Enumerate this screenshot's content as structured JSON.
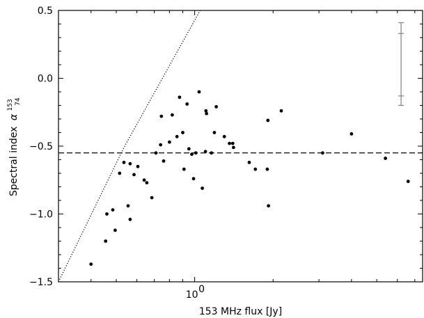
{
  "chart_data": {
    "type": "scatter",
    "xlabel": "153 MHz flux [Jy]",
    "ylabel": "Spectral index",
    "ylabel_symbol": "α",
    "ylabel_sup": "153",
    "ylabel_sub": "74",
    "xscale": "log",
    "xlim": [
      0.3,
      7.5
    ],
    "ylim": [
      -1.5,
      0.5
    ],
    "yticks": [
      {
        "value": 0.5,
        "label": "0.5"
      },
      {
        "value": 0.0,
        "label": "0.0"
      },
      {
        "value": -0.5,
        "label": "−0.5"
      },
      {
        "value": -1.0,
        "label": "−1.0"
      },
      {
        "value": -1.5,
        "label": "−1.5"
      }
    ],
    "xticks": [
      {
        "value": 1,
        "base": "10",
        "exponent": "0"
      }
    ],
    "horizontal_line": {
      "y": -0.55,
      "style": "dashed"
    },
    "dotted_line": {
      "points": [
        [
          0.3,
          -1.5
        ],
        [
          0.535,
          -0.51
        ],
        [
          1.05,
          0.5
        ]
      ],
      "style": "dotted"
    },
    "error_bar": {
      "x": 6.2,
      "center": 0.33,
      "outer": [
        -0.2,
        0.41
      ],
      "inner": [
        -0.13,
        0.33
      ],
      "color": "#808080"
    },
    "grid": false,
    "points": [
      [
        0.4,
        -1.37
      ],
      [
        0.455,
        -1.2
      ],
      [
        0.46,
        -1.0
      ],
      [
        0.485,
        -0.97
      ],
      [
        0.495,
        -1.12
      ],
      [
        0.515,
        -0.7
      ],
      [
        0.535,
        -0.62
      ],
      [
        0.555,
        -0.94
      ],
      [
        0.565,
        -1.04
      ],
      [
        0.565,
        -0.63
      ],
      [
        0.585,
        -0.71
      ],
      [
        0.605,
        -0.65
      ],
      [
        0.64,
        -0.75
      ],
      [
        0.655,
        -0.77
      ],
      [
        0.685,
        -0.88
      ],
      [
        0.71,
        -0.55
      ],
      [
        0.74,
        -0.49
      ],
      [
        0.745,
        -0.28
      ],
      [
        0.76,
        -0.61
      ],
      [
        0.8,
        -0.47
      ],
      [
        0.82,
        -0.27
      ],
      [
        0.855,
        -0.43
      ],
      [
        0.875,
        -0.14
      ],
      [
        0.9,
        -0.4
      ],
      [
        0.91,
        -0.67
      ],
      [
        0.935,
        -0.19
      ],
      [
        0.95,
        -0.52
      ],
      [
        0.975,
        -0.56
      ],
      [
        0.99,
        -0.74
      ],
      [
        1.01,
        -0.55
      ],
      [
        1.04,
        -0.1
      ],
      [
        1.07,
        -0.81
      ],
      [
        1.1,
        -0.54
      ],
      [
        1.105,
        -0.24
      ],
      [
        1.11,
        -0.26
      ],
      [
        1.16,
        -0.55
      ],
      [
        1.19,
        -0.4
      ],
      [
        1.21,
        -0.21
      ],
      [
        1.3,
        -0.43
      ],
      [
        1.36,
        -0.48
      ],
      [
        1.4,
        -0.48
      ],
      [
        1.41,
        -0.51
      ],
      [
        1.62,
        -0.62
      ],
      [
        1.71,
        -0.67
      ],
      [
        1.9,
        -0.67
      ],
      [
        1.91,
        -0.31
      ],
      [
        1.92,
        -0.94
      ],
      [
        2.15,
        -0.24
      ],
      [
        3.1,
        -0.55
      ],
      [
        4.0,
        -0.41
      ],
      [
        5.4,
        -0.59
      ],
      [
        6.6,
        -0.76
      ]
    ]
  }
}
